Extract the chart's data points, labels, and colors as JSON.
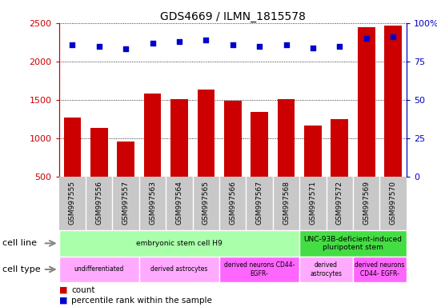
{
  "title": "GDS4669 / ILMN_1815578",
  "samples": [
    "GSM997555",
    "GSM997556",
    "GSM997557",
    "GSM997563",
    "GSM997564",
    "GSM997565",
    "GSM997566",
    "GSM997567",
    "GSM997568",
    "GSM997571",
    "GSM997572",
    "GSM997569",
    "GSM997570"
  ],
  "counts": [
    1270,
    1130,
    960,
    1580,
    1510,
    1630,
    1490,
    1340,
    1510,
    1160,
    1250,
    2450,
    2470
  ],
  "percentiles": [
    86,
    85,
    83,
    87,
    88,
    89,
    86,
    85,
    86,
    84,
    85,
    90,
    91
  ],
  "bar_color": "#cc0000",
  "dot_color": "#0000cc",
  "ylim_left": [
    500,
    2500
  ],
  "ylim_right": [
    0,
    100
  ],
  "yticks_left": [
    500,
    1000,
    1500,
    2000,
    2500
  ],
  "yticks_right": [
    0,
    25,
    50,
    75,
    100
  ],
  "ytick_right_labels": [
    "0",
    "25",
    "50",
    "75",
    "100%"
  ],
  "cell_line_data": [
    {
      "label": "embryonic stem cell H9",
      "start": 0,
      "end": 9,
      "color": "#aaffaa"
    },
    {
      "label": "UNC-93B-deficient-induced\npluripotent stem",
      "start": 9,
      "end": 13,
      "color": "#44dd44"
    }
  ],
  "cell_type_data": [
    {
      "label": "undifferentiated",
      "start": 0,
      "end": 3,
      "color": "#ffaaff"
    },
    {
      "label": "derived astrocytes",
      "start": 3,
      "end": 6,
      "color": "#ffaaff"
    },
    {
      "label": "derived neurons CD44-\nEGFR-",
      "start": 6,
      "end": 9,
      "color": "#ff66ff"
    },
    {
      "label": "derived\nastrocytes",
      "start": 9,
      "end": 11,
      "color": "#ffaaff"
    },
    {
      "label": "derived neurons\nCD44- EGFR-",
      "start": 11,
      "end": 13,
      "color": "#ff66ff"
    }
  ],
  "legend_count_color": "#cc0000",
  "legend_pct_color": "#0000cc",
  "xtick_bg_color": "#c8c8c8",
  "label_arrow_color": "#888888"
}
